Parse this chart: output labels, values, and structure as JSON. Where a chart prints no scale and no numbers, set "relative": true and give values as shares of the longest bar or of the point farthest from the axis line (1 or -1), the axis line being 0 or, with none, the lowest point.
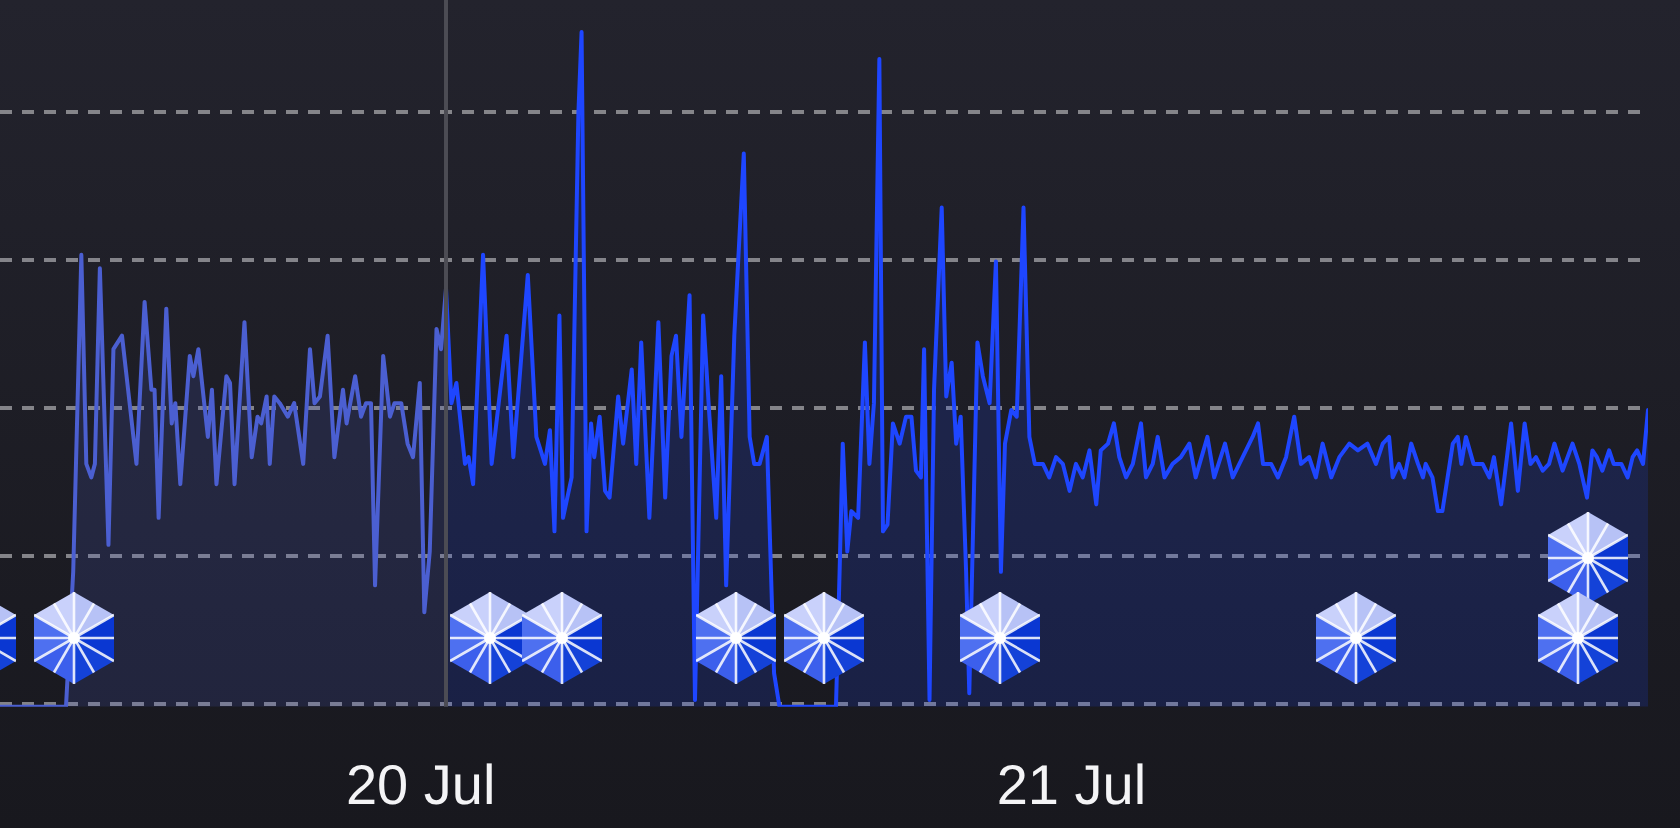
{
  "chart_data": {
    "type": "area",
    "relative": true,
    "xlim": [
      "--07-19T08:29",
      "--07-21T21:16"
    ],
    "xticks": [
      {
        "value": "--07-20",
        "label": "20 Jul"
      },
      {
        "value": "--07-21",
        "label": "21 Jul"
      }
    ],
    "tick_labels": "x",
    "grid": "y",
    "ref_lines": [
      {
        "axis": "x",
        "value": "--07-20T00:56",
        "color": "#4c4c54"
      }
    ],
    "series": [
      {
        "color": "#4b5fd1",
        "x": [
          "--07-19T08:29",
          "--07-19T10:55",
          "--07-19T11:11",
          "--07-19T11:29",
          "--07-19T11:40",
          "--07-19T11:51",
          "--07-19T11:59",
          "--07-19T12:10",
          "--07-19T12:29",
          "--07-19T12:40",
          "--07-19T12:59",
          "--07-19T13:31",
          "--07-19T13:49",
          "--07-19T14:04",
          "--07-19T14:11",
          "--07-19T14:20",
          "--07-19T14:37",
          "--07-19T14:49",
          "--07-19T14:57",
          "--07-19T15:08",
          "--07-19T15:29",
          "--07-19T15:37",
          "--07-19T15:48",
          "--07-19T16:09",
          "--07-19T16:18",
          "--07-19T16:28",
          "--07-19T16:50",
          "--07-19T16:58",
          "--07-19T17:08",
          "--07-19T17:30",
          "--07-19T17:46",
          "--07-19T17:59",
          "--07-19T18:07",
          "--07-19T18:19",
          "--07-19T18:26",
          "--07-19T18:36",
          "--07-19T18:48",
          "--07-19T19:06",
          "--07-19T19:20",
          "--07-19T19:40",
          "--07-19T19:55",
          "--07-19T20:05",
          "--07-19T20:17",
          "--07-19T20:34",
          "--07-19T20:49",
          "--07-19T21:08",
          "--07-19T21:16",
          "--07-19T21:35",
          "--07-19T21:48",
          "--07-19T21:59",
          "--07-19T22:10",
          "--07-19T22:19",
          "--07-19T22:37",
          "--07-19T22:52",
          "--07-19T23:02",
          "--07-19T23:17",
          "--07-19T23:31",
          "--07-19T23:43",
          "--07-19T23:58",
          "--07-20T00:08",
          "--07-20T00:20",
          "--07-20T00:35",
          "--07-20T00:45",
          "--07-20T00:56"
        ],
        "values": [
          0,
          0,
          0.2,
          0.67,
          0.36,
          0.34,
          0.36,
          0.65,
          0.24,
          0.53,
          0.55,
          0.36,
          0.6,
          0.47,
          0.47,
          0.28,
          0.59,
          0.42,
          0.45,
          0.33,
          0.52,
          0.49,
          0.53,
          0.4,
          0.47,
          0.33,
          0.49,
          0.48,
          0.33,
          0.57,
          0.37,
          0.43,
          0.42,
          0.46,
          0.36,
          0.46,
          0.45,
          0.43,
          0.45,
          0.36,
          0.53,
          0.45,
          0.46,
          0.55,
          0.37,
          0.47,
          0.42,
          0.49,
          0.43,
          0.45,
          0.45,
          0.18,
          0.52,
          0.43,
          0.45,
          0.45,
          0.39,
          0.37,
          0.48,
          0.14,
          0.23,
          0.56,
          0.53,
          0.62
        ]
      },
      {
        "color": "#1e46ff",
        "x": [
          "--07-20T00:56",
          "--07-20T01:08",
          "--07-20T01:19",
          "--07-20T01:38",
          "--07-20T01:46",
          "--07-20T01:56",
          "--07-20T02:18",
          "--07-20T02:37",
          "--07-20T03:10",
          "--07-20T03:25",
          "--07-20T03:57",
          "--07-20T04:16",
          "--07-20T04:35",
          "--07-20T04:46",
          "--07-20T04:56",
          "--07-20T05:07",
          "--07-20T05:15",
          "--07-20T05:34",
          "--07-20T05:49",
          "--07-20T05:56",
          "--07-20T06:07",
          "--07-20T06:17",
          "--07-20T06:24",
          "--07-20T06:36",
          "--07-20T06:48",
          "--07-20T06:58",
          "--07-20T07:17",
          "--07-20T07:28",
          "--07-20T07:47",
          "--07-20T07:57",
          "--07-20T08:08",
          "--07-20T08:26",
          "--07-20T08:46",
          "--07-20T09:01",
          "--07-20T09:15",
          "--07-20T09:25",
          "--07-20T09:37",
          "--07-20T09:55",
          "--07-20T10:07",
          "--07-20T10:25",
          "--07-20T10:39",
          "--07-20T10:54",
          "--07-20T11:05",
          "--07-20T11:16",
          "--07-20T11:34",
          "--07-20T11:55",
          "--07-20T12:08",
          "--07-20T12:18",
          "--07-20T12:30",
          "--07-20T12:46",
          "--07-20T13:02",
          "--07-20T13:14",
          "--07-20T15:19",
          "--07-20T15:27",
          "--07-20T15:34",
          "--07-20T15:44",
          "--07-20T15:53",
          "--07-20T16:08",
          "--07-20T16:23",
          "--07-20T16:33",
          "--07-20T16:43",
          "--07-20T16:55",
          "--07-20T17:03",
          "--07-20T17:13",
          "--07-20T17:25",
          "--07-20T17:40",
          "--07-20T17:54",
          "--07-20T18:06",
          "--07-20T18:16",
          "--07-20T18:27",
          "--07-20T18:34",
          "--07-20T18:46",
          "--07-20T18:56",
          "--07-20T19:13",
          "--07-20T19:23",
          "--07-20T19:35",
          "--07-20T19:45",
          "--07-20T19:55",
          "--07-20T20:07",
          "--07-20T20:14",
          "--07-20T20:32",
          "--07-20T20:44",
          "--07-20T20:59",
          "--07-20T21:13",
          "--07-20T21:24",
          "--07-20T21:33",
          "--07-20T21:47",
          "--07-20T21:59",
          "--07-20T22:14",
          "--07-20T22:27",
          "--07-20T22:39",
          "--07-20T22:57",
          "--07-20T23:11",
          "--07-20T23:26",
          "--07-20T23:41",
          "--07-20T23:56",
          "--07-21T00:10",
          "--07-21T00:25",
          "--07-21T00:40",
          "--07-21T00:55",
          "--07-21T01:05",
          "--07-21T01:21",
          "--07-21T01:34",
          "--07-21T01:46",
          "--07-21T02:01",
          "--07-21T02:16",
          "--07-21T02:34",
          "--07-21T02:45",
          "--07-21T03:00",
          "--07-21T03:11",
          "--07-21T03:26",
          "--07-21T03:44",
          "--07-21T04:02",
          "--07-21T04:21",
          "--07-21T04:35",
          "--07-21T05:01",
          "--07-21T05:16",
          "--07-21T05:40",
          "--07-21T05:57",
          "--07-21T06:19",
          "--07-21T06:41",
          "--07-21T06:53",
          "--07-21T07:04",
          "--07-21T07:22",
          "--07-21T07:37",
          "--07-21T07:55",
          "--07-21T08:13",
          "--07-21T08:28",
          "--07-21T08:46",
          "--07-21T09:01",
          "--07-21T09:16",
          "--07-21T09:35",
          "--07-21T09:53",
          "--07-21T10:15",
          "--07-21T10:34",
          "--07-21T10:55",
          "--07-21T11:14",
          "--07-21T11:29",
          "--07-21T11:43",
          "--07-21T11:51",
          "--07-21T12:05",
          "--07-21T12:17",
          "--07-21T12:32",
          "--07-21T12:47",
          "--07-21T12:58",
          "--07-21T13:04",
          "--07-21T13:19",
          "--07-21T13:31",
          "--07-21T13:41",
          "--07-21T14:04",
          "--07-21T14:15",
          "--07-21T14:23",
          "--07-21T14:33",
          "--07-21T14:50",
          "--07-21T15:10",
          "--07-21T15:25",
          "--07-21T15:35",
          "--07-21T15:51",
          "--07-21T16:13",
          "--07-21T16:28",
          "--07-21T16:43",
          "--07-21T16:56",
          "--07-21T17:08",
          "--07-21T17:23",
          "--07-21T17:37",
          "--07-21T17:49",
          "--07-21T18:07",
          "--07-21T18:29",
          "--07-21T18:44",
          "--07-21T19:01",
          "--07-21T19:13",
          "--07-21T19:23",
          "--07-21T19:35",
          "--07-21T19:50",
          "--07-21T20:00",
          "--07-21T20:17",
          "--07-21T20:31",
          "--07-21T20:42",
          "--07-21T20:52",
          "--07-21T21:05",
          "--07-21T21:16"
        ],
        "values": [
          0.62,
          0.45,
          0.48,
          0.36,
          0.37,
          0.33,
          0.67,
          0.36,
          0.55,
          0.37,
          0.64,
          0.4,
          0.36,
          0.41,
          0.26,
          0.58,
          0.28,
          0.34,
          0.88,
          1,
          0.26,
          0.42,
          0.37,
          0.43,
          0.32,
          0.31,
          0.46,
          0.39,
          0.5,
          0.36,
          0.54,
          0.28,
          0.57,
          0.31,
          0.52,
          0.55,
          0.4,
          0.61,
          0.01,
          0.58,
          0.43,
          0.28,
          0.49,
          0.18,
          0.55,
          0.82,
          0.4,
          0.36,
          0.36,
          0.4,
          0.05,
          0,
          0,
          0.2,
          0.39,
          0.23,
          0.29,
          0.28,
          0.54,
          0.36,
          0.45,
          0.96,
          0.26,
          0.27,
          0.42,
          0.39,
          0.43,
          0.43,
          0.35,
          0.34,
          0.53,
          0.01,
          0.47,
          0.74,
          0.46,
          0.51,
          0.39,
          0.43,
          0.2,
          0.02,
          0.54,
          0.49,
          0.45,
          0.66,
          0.2,
          0.39,
          0.44,
          0.43,
          0.74,
          0.4,
          0.36,
          0.36,
          0.34,
          0.37,
          0.36,
          0.32,
          0.36,
          0.34,
          0.38,
          0.3,
          0.38,
          0.39,
          0.42,
          0.37,
          0.34,
          0.36,
          0.42,
          0.34,
          0.36,
          0.4,
          0.34,
          0.36,
          0.37,
          0.39,
          0.34,
          0.4,
          0.34,
          0.39,
          0.34,
          0.37,
          0.4,
          0.42,
          0.36,
          0.36,
          0.34,
          0.37,
          0.43,
          0.36,
          0.37,
          0.34,
          0.39,
          0.34,
          0.37,
          0.39,
          0.38,
          0.39,
          0.36,
          0.39,
          0.4,
          0.34,
          0.36,
          0.34,
          0.39,
          0.36,
          0.34,
          0.36,
          0.34,
          0.29,
          0.29,
          0.39,
          0.4,
          0.36,
          0.4,
          0.36,
          0.36,
          0.34,
          0.37,
          0.3,
          0.42,
          0.32,
          0.42,
          0.36,
          0.37,
          0.35,
          0.36,
          0.39,
          0.35,
          0.39,
          0.36,
          0.31,
          0.38,
          0.37,
          0.35,
          0.38,
          0.36,
          0.36,
          0.34,
          0.37,
          0.38,
          0.36,
          0.44
        ]
      }
    ]
  }
}
